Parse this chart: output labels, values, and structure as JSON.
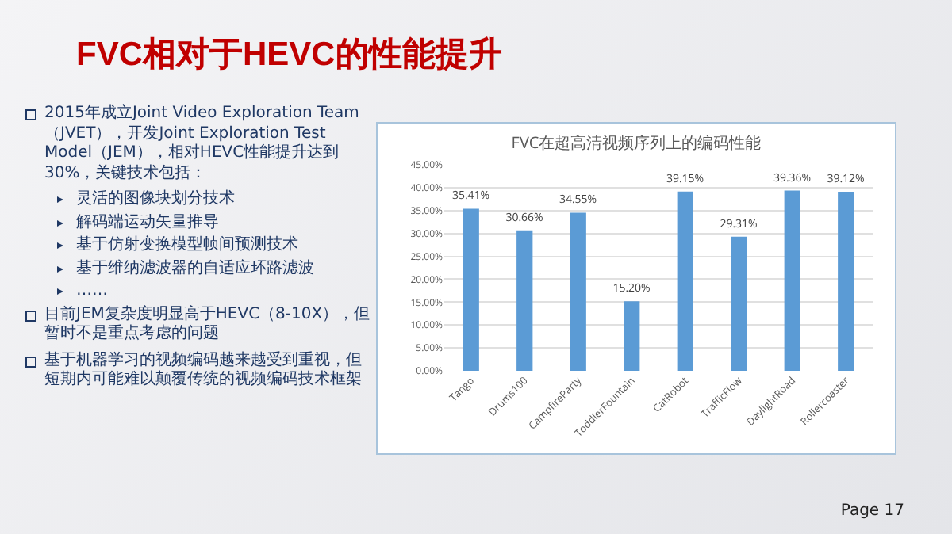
{
  "chart_data": {
    "type": "bar",
    "title": "FVC相对于HEVC的性能提升",
    "subtitle": "FVC在超高清视频序列上的编码性能",
    "categories": [
      "Tango",
      "Drums100",
      "CampfireParty",
      "ToddlerFountain",
      "CatRobot",
      "TrafficFlow",
      "DaylightRoad",
      "Rollercoaster"
    ],
    "values": [
      35.41,
      30.66,
      34.55,
      15.2,
      39.15,
      29.31,
      39.36,
      39.12
    ],
    "value_labels": [
      "35.41%",
      "30.66%",
      "34.55%",
      "15.20%",
      "39.15%",
      "29.31%",
      "39.36%",
      "39.12%"
    ],
    "color": "#5b9bd5",
    "ylim": [
      0,
      45
    ],
    "yticks": [
      {
        "value": 0,
        "label": "0.00%"
      },
      {
        "value": 5,
        "label": "5.00%"
      },
      {
        "value": 10,
        "label": "10.00%"
      },
      {
        "value": 15,
        "label": "15.00%"
      },
      {
        "value": 20,
        "label": "20.00%"
      },
      {
        "value": 25,
        "label": "25.00%"
      },
      {
        "value": 30,
        "label": "30.00%"
      },
      {
        "value": 35,
        "label": "35.00%"
      },
      {
        "value": 40,
        "label": "40.00%"
      },
      {
        "value": 45,
        "label": "45.00%"
      }
    ],
    "grid": "y",
    "legend": false,
    "annotations": [
      "2015年成立Joint Video Exploration Team（JVET），开发Joint Exploration Test Model（JEM），相对HEVC性能提升达到30%，关键技术包括：",
      "灵活的图像块划分技术",
      "解码端运动矢量推导",
      "基于仿射变换模型帧间预测技术",
      "基于维纳滤波器的自适应环路滤波",
      "……",
      "目前JEM复杂度明显高于HEVC（8-10X），但暂时不是重点考虑的问题",
      "基于机器学习的视频编码越来越受到重视，但短期内可能难以颠覆传统的视频编码技术框架",
      "Page 17"
    ]
  }
}
